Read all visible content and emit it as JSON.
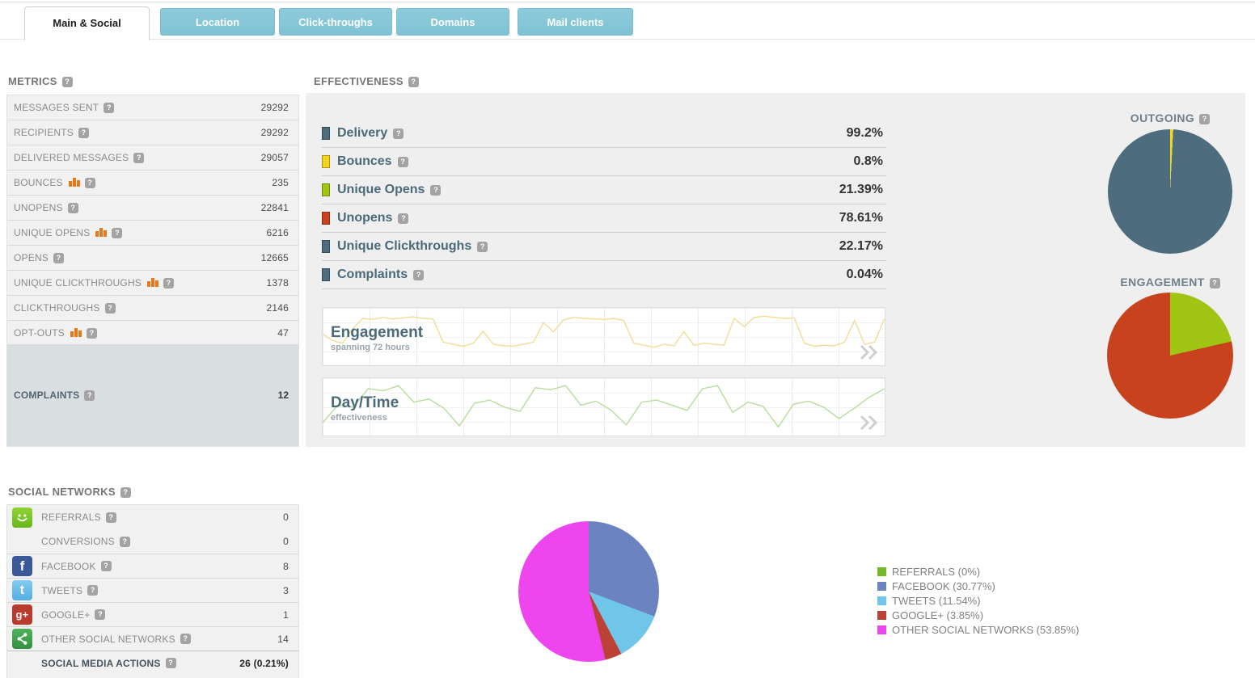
{
  "ui": {
    "help_glyph": "?"
  },
  "tabs": [
    {
      "label": "Main & Social",
      "active": true
    },
    {
      "label": "Location",
      "active": false
    },
    {
      "label": "Click-throughs",
      "active": false
    },
    {
      "label": "Domains",
      "active": false
    },
    {
      "label": "Mail clients",
      "active": false
    }
  ],
  "metrics": {
    "header": "METRICS",
    "rows": [
      {
        "label": "MESSAGES SENT",
        "value": "29292",
        "trend": false
      },
      {
        "label": "RECIPIENTS",
        "value": "29292",
        "trend": false
      },
      {
        "label": "DELIVERED MESSAGES",
        "value": "29057",
        "trend": false
      },
      {
        "label": "BOUNCES",
        "value": "235",
        "trend": true
      },
      {
        "label": "UNOPENS",
        "value": "22841",
        "trend": false
      },
      {
        "label": "UNIQUE OPENS",
        "value": "6216",
        "trend": true
      },
      {
        "label": "OPENS",
        "value": "12665",
        "trend": false
      },
      {
        "label": "UNIQUE CLICKTHROUGHS",
        "value": "1378",
        "trend": true
      },
      {
        "label": "CLICKTHROUGHS",
        "value": "2146",
        "trend": false
      },
      {
        "label": "OPT-OUTS",
        "value": "47",
        "trend": true
      }
    ],
    "complaints": {
      "label": "COMPLAINTS",
      "value": "12"
    }
  },
  "effectiveness": {
    "header": "EFFECTIVENESS",
    "rows": [
      {
        "label": "Delivery",
        "value": "99.2%",
        "color": "#4d6d7e"
      },
      {
        "label": "Bounces",
        "value": "0.8%",
        "color": "#f3d51e"
      },
      {
        "label": "Unique Opens",
        "value": "21.39%",
        "color": "#a0c515"
      },
      {
        "label": "Unopens",
        "value": "78.61%",
        "color": "#c8431d"
      },
      {
        "label": "Unique Clickthroughs",
        "value": "22.17%",
        "color": "#4d6d7e"
      },
      {
        "label": "Complaints",
        "value": "0.04%",
        "color": "#4d6d7e"
      }
    ]
  },
  "mini_charts": {
    "engagement": {
      "title": "Engagement",
      "subtitle": "spanning 72 hours"
    },
    "daytime": {
      "title": "Day/Time",
      "subtitle": "effectiveness"
    }
  },
  "pies": {
    "outgoing": {
      "title": "OUTGOING"
    },
    "engagement": {
      "title": "ENGAGEMENT"
    }
  },
  "social": {
    "header": "SOCIAL NETWORKS",
    "rows": [
      {
        "icon": "smiley-icon",
        "label": "REFERRALS",
        "value": "0"
      },
      {
        "icon": null,
        "label": "CONVERSIONS",
        "value": "0"
      },
      {
        "icon": "facebook-icon",
        "label": "FACEBOOK",
        "value": "8"
      },
      {
        "icon": "twitter-icon",
        "label": "TWEETS",
        "value": "3"
      },
      {
        "icon": "googleplus-icon",
        "label": "GOOGLE+",
        "value": "1"
      },
      {
        "icon": "share-icon",
        "label": "OTHER SOCIAL NETWORKS",
        "value": "14"
      }
    ],
    "total": {
      "label": "SOCIAL MEDIA ACTIONS",
      "value": "26 (0.21%)"
    },
    "legend": [
      {
        "label": "REFERRALS (0%)",
        "color": "#76b82a"
      },
      {
        "label": "FACEBOOK (30.77%)",
        "color": "#6b84c1"
      },
      {
        "label": "TWEETS (11.54%)",
        "color": "#70c6e9"
      },
      {
        "label": "GOOGLE+ (3.85%)",
        "color": "#bc4136"
      },
      {
        "label": "OTHER SOCIAL NETWORKS (53.85%)",
        "color": "#ee46ee"
      }
    ]
  },
  "chart_data": [
    {
      "type": "pie",
      "title": "OUTGOING",
      "series": [
        {
          "label": "Bounces",
          "value": 0.8,
          "color": "#f3d51e"
        },
        {
          "label": "Delivery",
          "value": 99.2,
          "color": "#4d6d7e"
        }
      ]
    },
    {
      "type": "pie",
      "title": "ENGAGEMENT",
      "series": [
        {
          "label": "Unique Opens",
          "value": 21.39,
          "color": "#a0c515"
        },
        {
          "label": "Unopens",
          "value": 78.61,
          "color": "#c8431d"
        }
      ]
    },
    {
      "type": "pie",
      "title": "SOCIAL NETWORKS",
      "series": [
        {
          "label": "REFERRALS",
          "value": 0,
          "color": "#76b82a"
        },
        {
          "label": "FACEBOOK",
          "value": 30.77,
          "color": "#6b84c1"
        },
        {
          "label": "TWEETS",
          "value": 11.54,
          "color": "#70c6e9"
        },
        {
          "label": "GOOGLE+",
          "value": 3.85,
          "color": "#bc4136"
        },
        {
          "label": "OTHER SOCIAL NETWORKS",
          "value": 53.85,
          "color": "#ee46ee"
        }
      ]
    },
    {
      "type": "line",
      "title": "Engagement",
      "subtitle": "spanning 72 hours",
      "color": "#f3dc96",
      "values": [
        58,
        45,
        40,
        68,
        88,
        86,
        90,
        87,
        89,
        91,
        88,
        87,
        42,
        38,
        34,
        40,
        63,
        38,
        35,
        34,
        38,
        42,
        80,
        62,
        85,
        90,
        88,
        87,
        86,
        88,
        84,
        40,
        36,
        32,
        38,
        35,
        62,
        36,
        40,
        38,
        36,
        88,
        72,
        90,
        92,
        90,
        88,
        89,
        40,
        34,
        36,
        35,
        42,
        84,
        38,
        42,
        88
      ]
    },
    {
      "type": "line",
      "title": "Day/Time",
      "subtitle": "effectiveness",
      "color": "#b7dc9b",
      "values": [
        22,
        56,
        52,
        88,
        84,
        94,
        62,
        68,
        50,
        16,
        60,
        66,
        52,
        44,
        90,
        86,
        94,
        56,
        64,
        46,
        18,
        62,
        66,
        56,
        46,
        88,
        94,
        42,
        62,
        54,
        14,
        58,
        64,
        52,
        30,
        50,
        72,
        88
      ]
    }
  ]
}
